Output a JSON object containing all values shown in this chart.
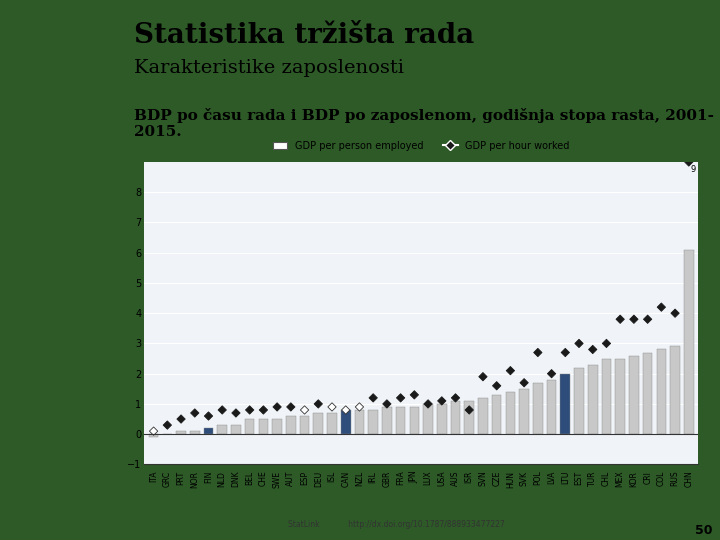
{
  "title1": "Statistika tržišta rada",
  "title2": "Karakteristike zaposlenosti",
  "subtitle": "BDP po času rada i BDP po zaposlenom, godišnja stopa rasta, 2001-\n2015.",
  "legend1": "GDP per person employed",
  "legend2": "GDP per hour worked",
  "footnote": "StatLink            http://dx.doi.org/10.1787/888933477227",
  "page_num": "50",
  "countries": [
    "ITA",
    "GRC",
    "PRT",
    "NOR",
    "FIN",
    "NLD",
    "DNK",
    "BEL",
    "CHE",
    "SWE",
    "AUT",
    "ESP",
    "DEU",
    "ISL",
    "CAN",
    "NZL",
    "IRL",
    "GBR",
    "FRA",
    "JPN",
    "LUX",
    "USA",
    "AUS",
    "ISR",
    "SVN",
    "CZE",
    "HUN",
    "SVK",
    "POL",
    "LVA",
    "LTU",
    "EST",
    "TUR",
    "CHL",
    "MEX",
    "KOR",
    "CRI",
    "COL",
    "RUS",
    "CHN"
  ],
  "bar_values": [
    -0.1,
    0.0,
    0.1,
    0.1,
    0.2,
    0.3,
    0.3,
    0.5,
    0.5,
    0.5,
    0.6,
    0.6,
    0.7,
    0.7,
    0.8,
    0.8,
    0.8,
    0.9,
    0.9,
    0.9,
    1.0,
    1.0,
    1.1,
    1.1,
    1.2,
    1.3,
    1.4,
    1.5,
    1.7,
    1.8,
    2.0,
    2.2,
    2.3,
    2.5,
    2.5,
    2.6,
    2.7,
    2.8,
    2.9,
    6.1
  ],
  "scatter_values": [
    0.1,
    0.3,
    0.5,
    0.7,
    0.6,
    0.8,
    0.7,
    0.8,
    0.8,
    0.9,
    0.9,
    0.8,
    1.0,
    0.9,
    0.8,
    0.9,
    1.2,
    1.0,
    1.2,
    1.3,
    1.0,
    1.1,
    1.2,
    0.8,
    1.9,
    1.6,
    2.1,
    1.7,
    2.7,
    2.0,
    2.7,
    3.0,
    2.8,
    3.0,
    3.8,
    3.8,
    3.8,
    4.2,
    4.0,
    9.0
  ],
  "highlight_bars": [
    4,
    14,
    30
  ],
  "bar_color_normal": "#c8c8c8",
  "bar_color_highlight": "#2e4d7b",
  "scatter_color_normal": "#1a1a1a",
  "scatter_color_open": "#c8c8c8",
  "bg_color": "#f0f4f8",
  "chart_bg": "#ffffff",
  "ylim": [
    -1,
    9
  ],
  "yticks": [
    -1,
    0,
    1,
    2,
    3,
    4,
    5,
    6,
    7,
    8
  ],
  "title1_fontsize": 20,
  "title2_fontsize": 14,
  "subtitle_fontsize": 11
}
